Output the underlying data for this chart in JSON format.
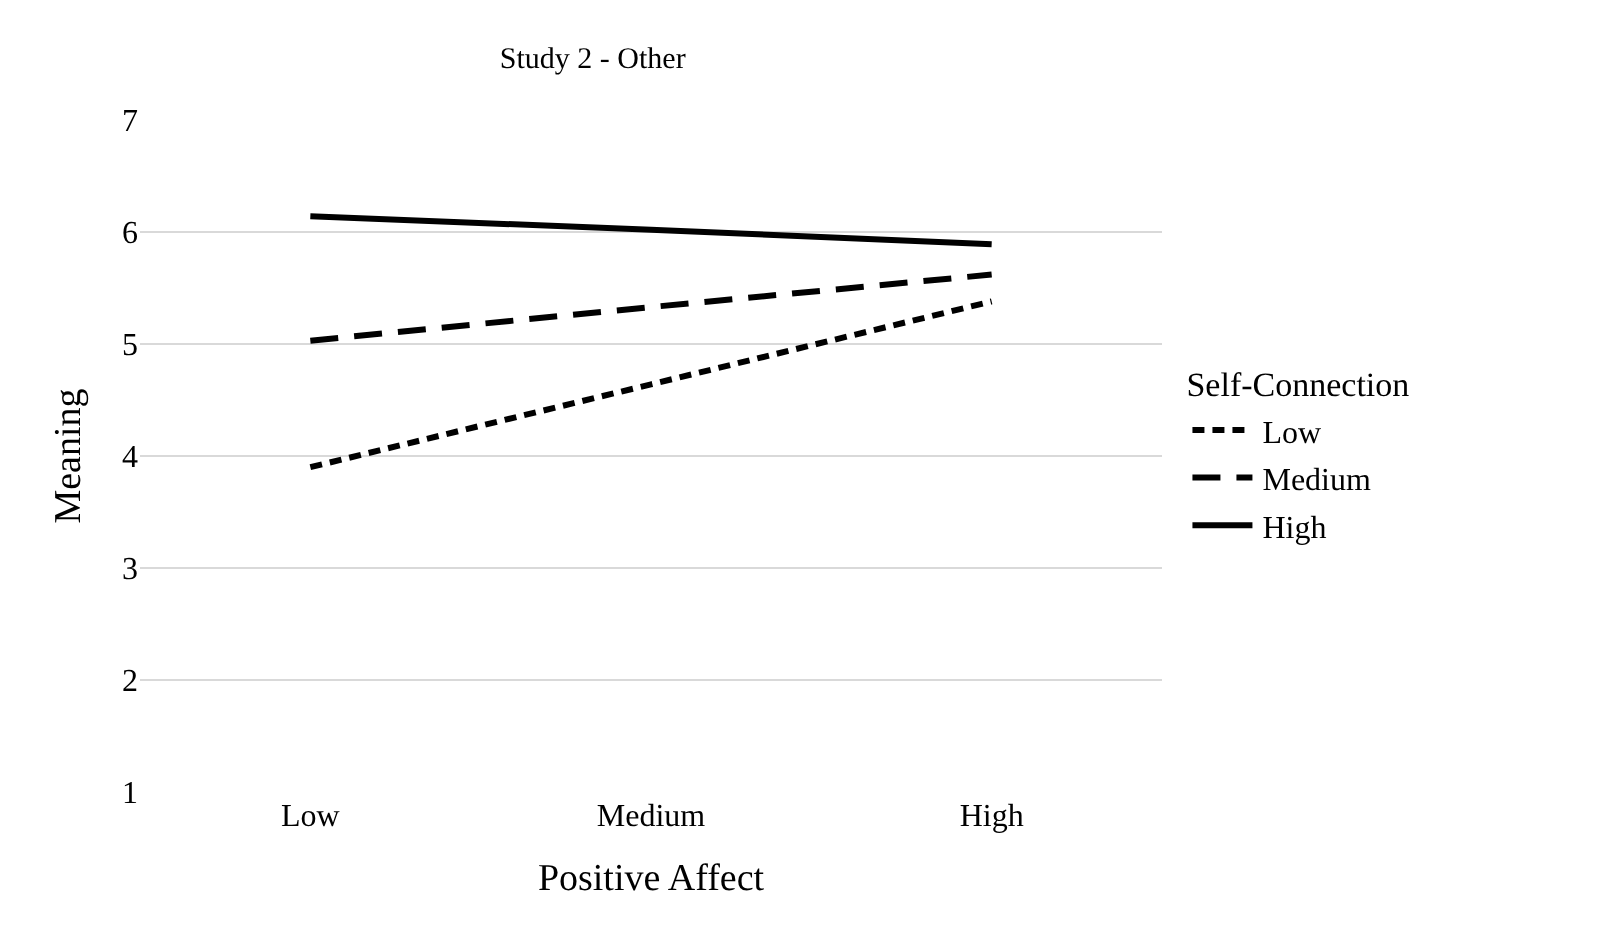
{
  "chart_data": {
    "type": "line",
    "title": "Study 2 - Other",
    "xlabel": "Positive Affect",
    "ylabel": "Meaning",
    "legend_title": "Self-Connection",
    "categories": [
      "Low",
      "Medium",
      "High"
    ],
    "series": [
      {
        "name": "Low",
        "color": "#000000",
        "line_style": "dotted",
        "values": [
          3.9,
          4.64,
          5.38
        ]
      },
      {
        "name": "Medium",
        "color": "#000000",
        "line_style": "dashed",
        "values": [
          5.03,
          5.33,
          5.62
        ]
      },
      {
        "name": "High",
        "color": "#000000",
        "line_style": "solid",
        "values": [
          6.14,
          6.02,
          5.89
        ]
      }
    ],
    "ylim": [
      1,
      7
    ],
    "yticks": [
      1,
      2,
      3,
      4,
      5,
      6,
      7
    ],
    "grid": "y",
    "legend": "right",
    "marker": "none"
  }
}
